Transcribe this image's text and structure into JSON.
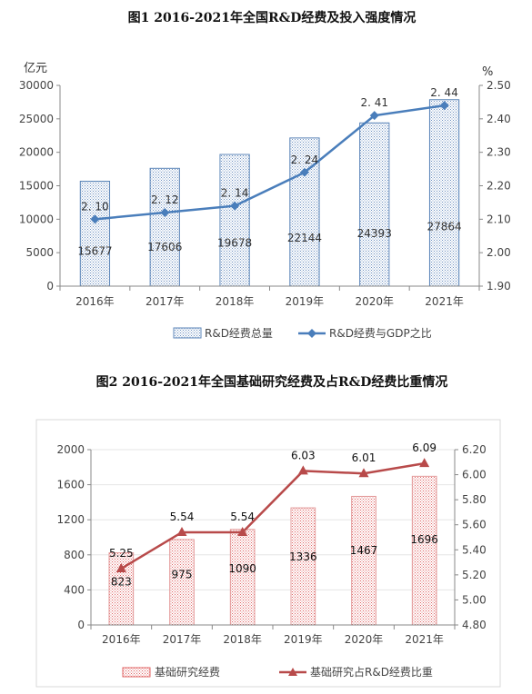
{
  "chart_data": [
    {
      "type": "bar",
      "title": "图1   2016-2021年全国R&D经费及投入强度情况",
      "categories": [
        "2016年",
        "2017年",
        "2018年",
        "2019年",
        "2020年",
        "2021年"
      ],
      "y_unit": "亿元",
      "y2_unit": "%",
      "ylim": [
        0,
        30000
      ],
      "y_ticks": [
        0,
        5000,
        10000,
        15000,
        20000,
        25000,
        30000
      ],
      "y2lim": [
        1.9,
        2.5
      ],
      "y2_ticks": [
        "1.90",
        "2.00",
        "2.10",
        "2.20",
        "2.30",
        "2.40",
        "2.50"
      ],
      "legend_position": "bottom",
      "series": [
        {
          "name": "R&D经费总量",
          "type": "bar",
          "axis": "left",
          "values": [
            15677,
            17606,
            19678,
            22144,
            24393,
            27864
          ],
          "labels": [
            "15677",
            "17606",
            "19678",
            "22144",
            "24393",
            "27864"
          ],
          "color": "#5b85b8"
        },
        {
          "name": "R&D经费与GDP之比",
          "type": "line",
          "axis": "right",
          "values": [
            2.1,
            2.12,
            2.14,
            2.24,
            2.41,
            2.44
          ],
          "labels": [
            "2. 10",
            "2. 12",
            "2. 14",
            "2. 24",
            "2. 41",
            "2. 44"
          ],
          "color": "#4a7ebb"
        }
      ]
    },
    {
      "type": "bar",
      "title": "图2   2016-2021年全国基础研究经费及占R&D经费比重情况",
      "categories": [
        "2016年",
        "2017年",
        "2018年",
        "2019年",
        "2020年",
        "2021年"
      ],
      "ylim": [
        0,
        2000
      ],
      "y_ticks": [
        0,
        400,
        800,
        1200,
        1600,
        2000
      ],
      "y2lim": [
        4.8,
        6.2
      ],
      "y2_ticks": [
        "4.80",
        "5.00",
        "5.20",
        "5.40",
        "5.60",
        "5.80",
        "6.00",
        "6.20"
      ],
      "legend_position": "bottom",
      "series": [
        {
          "name": "基础研究经费",
          "type": "bar",
          "axis": "left",
          "values": [
            823,
            975,
            1090,
            1336,
            1467,
            1696
          ],
          "labels": [
            "823",
            "975",
            "1090",
            "1336",
            "1467",
            "1696"
          ],
          "color": "#d9534f"
        },
        {
          "name": "基础研究占R&D经费比重",
          "type": "line",
          "axis": "right",
          "values": [
            5.25,
            5.54,
            5.54,
            6.03,
            6.01,
            6.09
          ],
          "labels": [
            "5.25",
            "5.54",
            "5.54",
            "6.03",
            "6.01",
            "6.09"
          ],
          "color": "#b84a4a"
        }
      ]
    }
  ]
}
